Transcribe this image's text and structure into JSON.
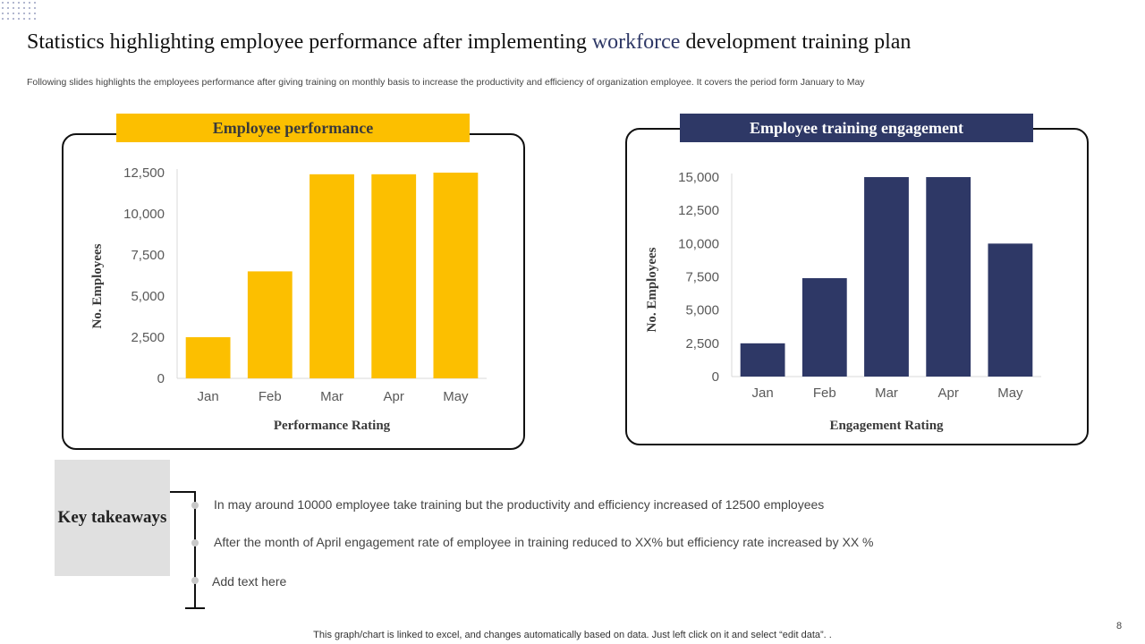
{
  "slide": {
    "title_part1": "Statistics highlighting employee performance after implementing",
    "title_accent": "workforce",
    "title_part2": "development training  plan",
    "subtitle": "Following slides highlights the employees performance after giving training on monthly basis to increase the productivity and efficiency of organization employee. It covers the period form January to May",
    "footer_note": "This graph/chart is linked to excel,  and changes automatically based on data. Just left click on it and select “edit data”. .",
    "page_number": "8"
  },
  "colors": {
    "yellow": "#fcbf00",
    "navy": "#2e3866",
    "grey_box": "#e0e0e0"
  },
  "chart_data": [
    {
      "type": "bar",
      "title": "Employee performance",
      "categories": [
        "Jan",
        "Feb",
        "Mar",
        "Apr",
        "May"
      ],
      "values": [
        2500,
        6500,
        12400,
        12400,
        12500
      ],
      "xlabel": "Performance Rating",
      "ylabel": "No. Employees",
      "ylim": [
        0,
        12500
      ],
      "yticks": [
        0,
        2500,
        5000,
        7500,
        10000,
        12500
      ],
      "ytick_labels": [
        "0",
        "2,500",
        "5,000",
        "7,500",
        "10,000",
        "12,500"
      ],
      "color": "#fcbf00"
    },
    {
      "type": "bar",
      "title": "Employee training engagement",
      "categories": [
        "Jan",
        "Feb",
        "Mar",
        "Apr",
        "May"
      ],
      "values": [
        2500,
        7400,
        15000,
        15000,
        10000
      ],
      "xlabel": "Engagement Rating",
      "ylabel": "No. Employees",
      "ylim": [
        0,
        15000
      ],
      "yticks": [
        0,
        2500,
        5000,
        7500,
        10000,
        12500,
        15000
      ],
      "ytick_labels": [
        "0",
        "2,500",
        "5,000",
        "7,500",
        "10,000",
        "12,500",
        "15,000"
      ],
      "color": "#2e3866"
    }
  ],
  "takeaways": {
    "heading": "Key takeaways",
    "items": [
      "In may around 10000 employee take training  but the productivity and efficiency increased of 12500 employees",
      "After the month of April engagement rate of employee in training  reduced to XX% but efficiency rate increased by XX %",
      "Add text here"
    ]
  }
}
